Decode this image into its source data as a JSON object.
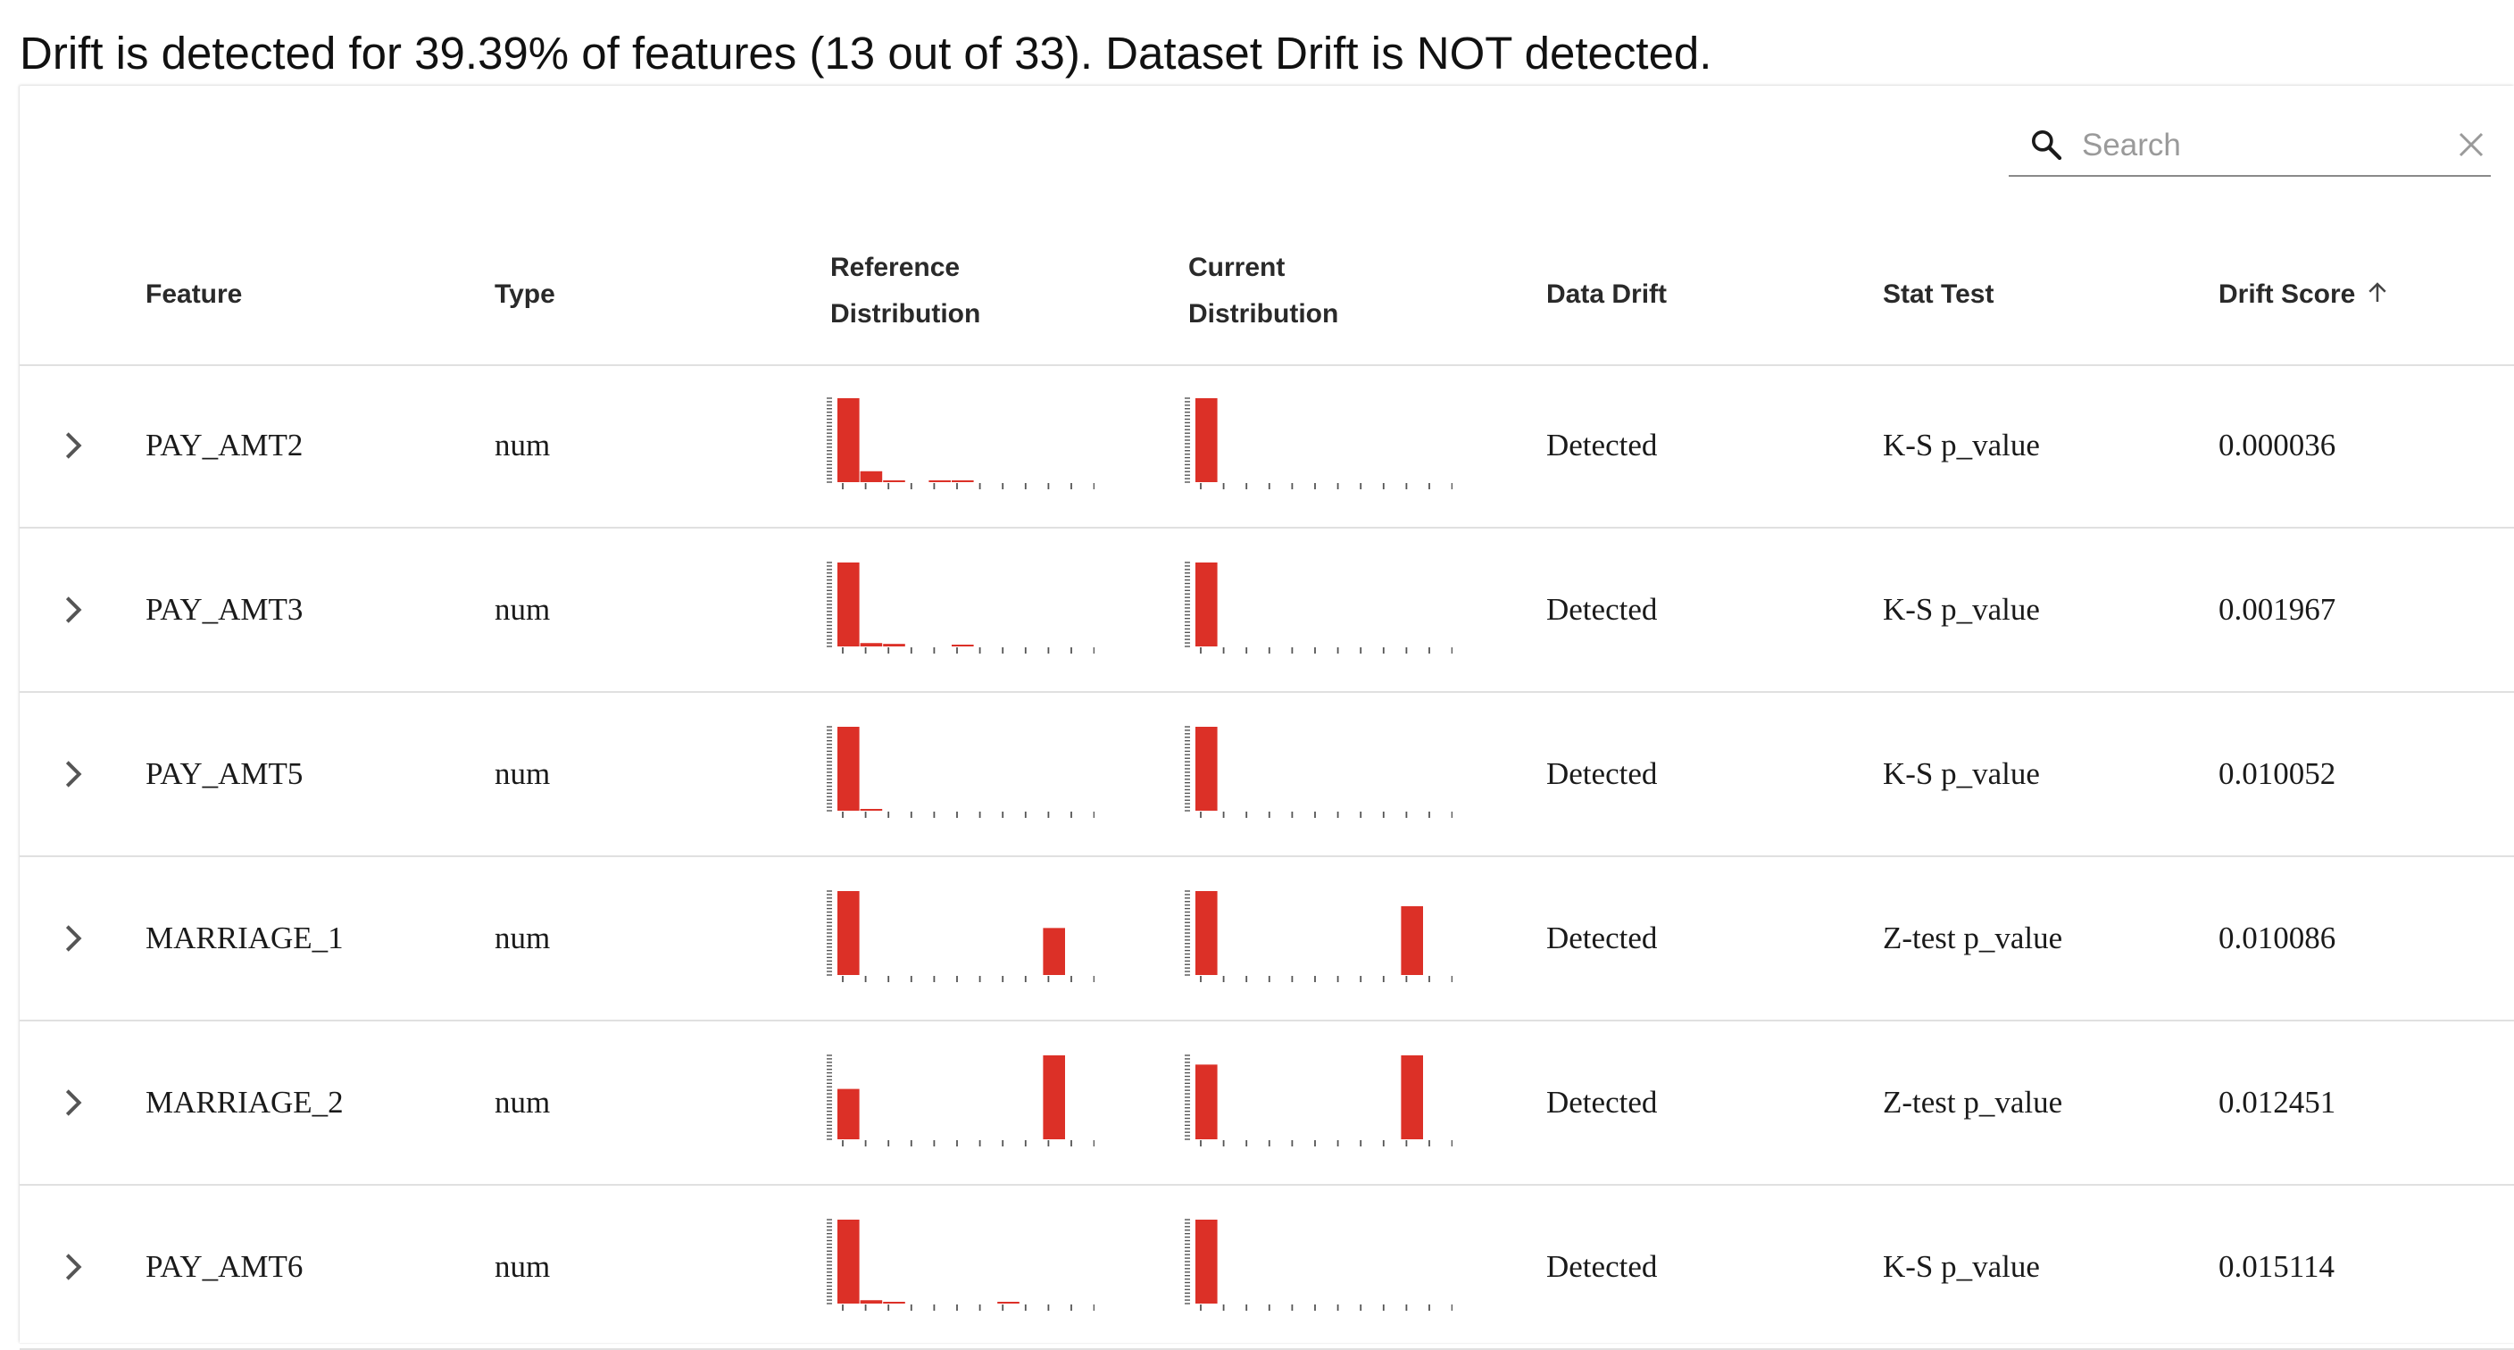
{
  "summary": "Drift is detected for 39.39% of features (13 out of 33). Dataset Drift is NOT detected.",
  "search": {
    "placeholder": "Search",
    "value": ""
  },
  "table": {
    "columns": {
      "feature": "Feature",
      "type": "Type",
      "ref_line1": "Reference",
      "ref_line2": "Distribution",
      "cur_line1": "Current",
      "cur_line2": "Distribution",
      "data_drift": "Data Drift",
      "stat_test": "Stat Test",
      "drift_score": "Drift Score"
    },
    "sort": {
      "column": "drift_score",
      "direction": "ascending"
    },
    "rows": [
      {
        "feature": "PAY_AMT2",
        "type": "num",
        "data_drift": "Detected",
        "stat_test": "K-S p_value",
        "drift_score": "0.000036",
        "ref_hist": [
          1,
          0.13,
          0.02,
          0,
          0.015,
          0.015,
          0,
          0,
          0,
          0,
          0
        ],
        "cur_hist": [
          1,
          0,
          0,
          0,
          0,
          0,
          0,
          0,
          0,
          0,
          0
        ]
      },
      {
        "feature": "PAY_AMT3",
        "type": "num",
        "data_drift": "Detected",
        "stat_test": "K-S p_value",
        "drift_score": "0.001967",
        "ref_hist": [
          1,
          0.04,
          0.03,
          0,
          0,
          0.02,
          0,
          0,
          0,
          0,
          0
        ],
        "cur_hist": [
          1,
          0,
          0,
          0,
          0,
          0,
          0,
          0,
          0,
          0,
          0
        ]
      },
      {
        "feature": "PAY_AMT5",
        "type": "num",
        "data_drift": "Detected",
        "stat_test": "K-S p_value",
        "drift_score": "0.010052",
        "ref_hist": [
          1,
          0.02,
          0,
          0,
          0,
          0,
          0,
          0,
          0,
          0,
          0
        ],
        "cur_hist": [
          1,
          0,
          0,
          0,
          0,
          0,
          0,
          0,
          0,
          0,
          0
        ]
      },
      {
        "feature": "MARRIAGE_1",
        "type": "num",
        "data_drift": "Detected",
        "stat_test": "Z-test p_value",
        "drift_score": "0.010086",
        "ref_hist": [
          1,
          0,
          0,
          0,
          0,
          0,
          0,
          0,
          0,
          0.56,
          0
        ],
        "cur_hist": [
          1,
          0,
          0,
          0,
          0,
          0,
          0,
          0,
          0,
          0.82,
          0
        ]
      },
      {
        "feature": "MARRIAGE_2",
        "type": "num",
        "data_drift": "Detected",
        "stat_test": "Z-test p_value",
        "drift_score": "0.012451",
        "ref_hist": [
          0.6,
          0,
          0,
          0,
          0,
          0,
          0,
          0,
          0,
          1,
          0
        ],
        "cur_hist": [
          0.89,
          0,
          0,
          0,
          0,
          0,
          0,
          0,
          0,
          1,
          0
        ]
      },
      {
        "feature": "PAY_AMT6",
        "type": "num",
        "data_drift": "Detected",
        "stat_test": "K-S p_value",
        "drift_score": "0.015114",
        "ref_hist": [
          1,
          0.04,
          0.02,
          0,
          0,
          0,
          0,
          0.02,
          0,
          0,
          0
        ],
        "cur_hist": [
          1,
          0,
          0,
          0,
          0,
          0,
          0,
          0,
          0,
          0,
          0
        ]
      }
    ]
  },
  "colors": {
    "bar": "#dc3027",
    "axis": "#555555"
  },
  "icons": {
    "search": "search-icon",
    "clear": "close-icon",
    "sort": "arrow-up-icon",
    "expand": "chevron-right-icon"
  }
}
